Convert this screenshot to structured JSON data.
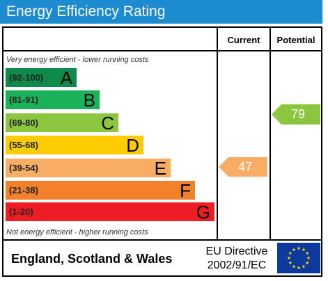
{
  "title": "Energy Efficiency Rating",
  "columns": {
    "current": "Current",
    "potential": "Potential"
  },
  "notes": {
    "top": "Very energy efficient - lower running costs",
    "bottom": "Not energy efficient - higher running costs"
  },
  "bands": [
    {
      "range": "(92-100)",
      "letter": "A",
      "color": "#0e8a4a"
    },
    {
      "range": "(81-91)",
      "letter": "B",
      "color": "#1bb35a"
    },
    {
      "range": "(69-80)",
      "letter": "C",
      "color": "#8cc63f"
    },
    {
      "range": "(55-68)",
      "letter": "D",
      "color": "#ffcc00"
    },
    {
      "range": "(39-54)",
      "letter": "E",
      "color": "#f9ac64"
    },
    {
      "range": "(21-38)",
      "letter": "F",
      "color": "#f3812b"
    },
    {
      "range": "(1-20)",
      "letter": "G",
      "color": "#ee1c25"
    }
  ],
  "ratings": {
    "current": {
      "value": "47",
      "color": "#f9ac64"
    },
    "potential": {
      "value": "79",
      "color": "#8cc63f"
    }
  },
  "footer": {
    "region": "England, Scotland & Wales",
    "directive_line1": "EU Directive",
    "directive_line2": "2002/91/EC"
  },
  "colors": {
    "title_bar": "#1d8bcf",
    "eu_flag": "#0d3a9c",
    "eu_stars": "#ffdd00"
  }
}
